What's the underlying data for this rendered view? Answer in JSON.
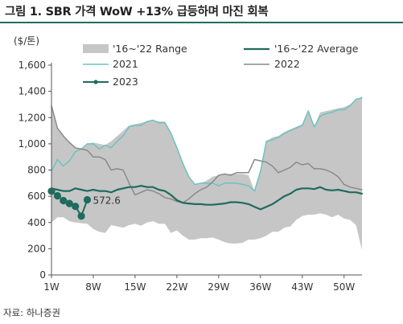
{
  "figure": {
    "title": "그림 1.  SBR 가격 WoW +13% 급등하며 마진 회복",
    "source": "자료: 하나증권"
  },
  "chart_data": {
    "type": "line",
    "ylabel": "($/톤)",
    "ylim": [
      0,
      1600
    ],
    "yticks": [
      0,
      200,
      400,
      600,
      800,
      "1,000",
      "1,200",
      "1,400",
      "1,600"
    ],
    "ytick_values": [
      0,
      200,
      400,
      600,
      800,
      1000,
      1200,
      1400,
      1600
    ],
    "xlim": [
      1,
      53
    ],
    "xtick_labels": [
      "1W",
      "8W",
      "15W",
      "22W",
      "29W",
      "36W",
      "43W",
      "50W"
    ],
    "xtick_values": [
      1,
      8,
      15,
      22,
      29,
      36,
      43,
      50
    ],
    "grid": false,
    "legend_position": "top",
    "annotation": {
      "text": "572.6",
      "x": 7,
      "y": 573
    },
    "range": {
      "name": "'16~'22 Range",
      "color": "#c6c6c6",
      "x": [
        1,
        2,
        3,
        4,
        5,
        6,
        7,
        8,
        9,
        10,
        11,
        12,
        13,
        14,
        15,
        16,
        17,
        18,
        19,
        20,
        21,
        22,
        23,
        24,
        25,
        26,
        27,
        28,
        29,
        30,
        31,
        32,
        33,
        34,
        35,
        36,
        37,
        38,
        39,
        40,
        41,
        42,
        43,
        44,
        45,
        46,
        47,
        48,
        49,
        50,
        51,
        52,
        53
      ],
      "upper": [
        1290,
        1120,
        1060,
        1010,
        970,
        960,
        1000,
        1010,
        1000,
        990,
        1020,
        1060,
        1100,
        1140,
        1150,
        1160,
        1170,
        1180,
        1170,
        1170,
        1090,
        980,
        860,
        750,
        690,
        700,
        720,
        750,
        760,
        770,
        770,
        770,
        770,
        760,
        640,
        790,
        1020,
        1050,
        1060,
        1090,
        1110,
        1130,
        1150,
        1260,
        1130,
        1240,
        1250,
        1260,
        1270,
        1280,
        1300,
        1340,
        1360
      ],
      "lower": [
        400,
        440,
        440,
        410,
        400,
        395,
        390,
        350,
        330,
        320,
        380,
        370,
        360,
        380,
        390,
        375,
        400,
        410,
        390,
        390,
        320,
        340,
        300,
        270,
        270,
        280,
        280,
        285,
        270,
        250,
        240,
        240,
        245,
        270,
        270,
        280,
        300,
        330,
        330,
        360,
        370,
        420,
        450,
        460,
        460,
        470,
        460,
        440,
        460,
        430,
        420,
        380,
        190
      ]
    },
    "series": [
      {
        "name": "'16~'22 Average",
        "color": "#1f6b5e",
        "width": 2.2,
        "values": [
          660,
          650,
          640,
          640,
          660,
          650,
          640,
          650,
          640,
          640,
          630,
          650,
          660,
          670,
          670,
          680,
          670,
          670,
          650,
          640,
          610,
          570,
          550,
          545,
          540,
          540,
          535,
          535,
          540,
          545,
          555,
          555,
          550,
          540,
          520,
          500,
          520,
          540,
          570,
          600,
          620,
          650,
          660,
          660,
          655,
          670,
          650,
          645,
          650,
          640,
          630,
          630,
          620
        ]
      },
      {
        "name": "2021",
        "color": "#6cc3bf",
        "width": 1.5,
        "values": [
          790,
          880,
          830,
          870,
          940,
          960,
          1000,
          1000,
          960,
          990,
          970,
          1020,
          1060,
          1130,
          1140,
          1140,
          1170,
          1180,
          1160,
          1160,
          1080,
          970,
          850,
          750,
          690,
          700,
          700,
          700,
          680,
          700,
          700,
          700,
          690,
          680,
          640,
          790,
          1020,
          1030,
          1050,
          1080,
          1100,
          1120,
          1140,
          1250,
          1130,
          1210,
          1230,
          1240,
          1260,
          1260,
          1290,
          1340,
          1350
        ]
      },
      {
        "name": "2022",
        "color": "#8a8a8a",
        "width": 1.5,
        "values": [
          1290,
          1120,
          1060,
          1010,
          970,
          960,
          950,
          900,
          900,
          880,
          800,
          810,
          800,
          700,
          610,
          630,
          650,
          640,
          620,
          590,
          580,
          560,
          550,
          580,
          620,
          650,
          670,
          710,
          760,
          770,
          760,
          780,
          780,
          780,
          880,
          870,
          860,
          830,
          780,
          800,
          820,
          860,
          840,
          850,
          810,
          810,
          800,
          780,
          750,
          690,
          670,
          660,
          650
        ]
      },
      {
        "name": "2023",
        "color": "#1f6b5e",
        "width": 2,
        "markers": true,
        "values": [
          639,
          604,
          567,
          545,
          523,
          449,
          573
        ]
      }
    ]
  }
}
